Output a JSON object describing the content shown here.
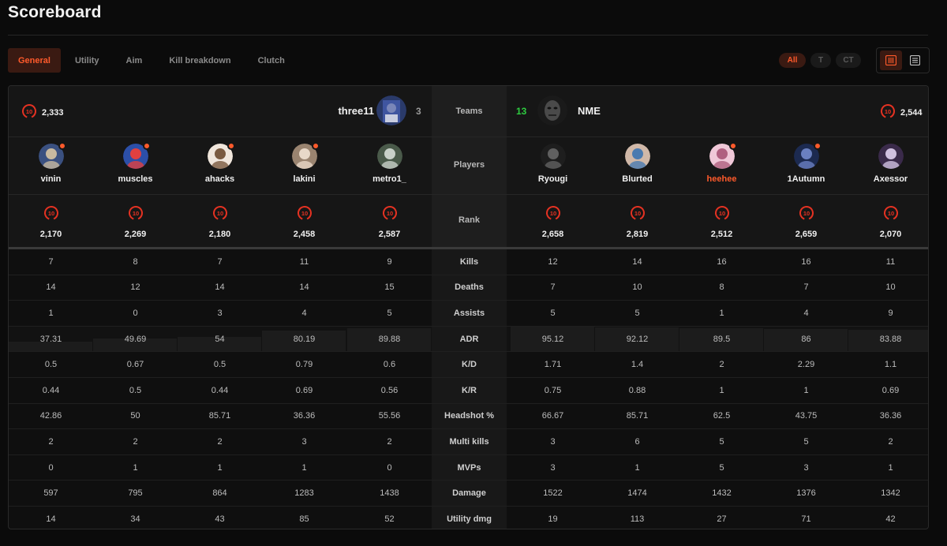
{
  "page": {
    "title": "Scoreboard"
  },
  "tabs": [
    "General",
    "Utility",
    "Aim",
    "Kill breakdown",
    "Clutch"
  ],
  "active_tab": "General",
  "side_filter": [
    "All",
    "T",
    "CT"
  ],
  "active_side": "All",
  "colors": {
    "accent": "#ff5a2b",
    "win": "#2ecc40",
    "badge": "#e53222"
  },
  "rank_badge_label": "10",
  "teams": {
    "left": {
      "name": "three11",
      "score": "3",
      "elo": "2,333"
    },
    "right": {
      "name": "NME",
      "score": "13",
      "elo": "2,544"
    }
  },
  "labels": {
    "teams": "Teams",
    "players": "Players",
    "rank": "Rank"
  },
  "players": {
    "left": [
      {
        "name": "vinin",
        "elo": "2,170",
        "flag": true
      },
      {
        "name": "muscles",
        "elo": "2,269",
        "flag": true
      },
      {
        "name": "ahacks",
        "elo": "2,180",
        "flag": true
      },
      {
        "name": "lakini",
        "elo": "2,458",
        "flag": true
      },
      {
        "name": "metro1_",
        "elo": "2,587",
        "flag": false
      }
    ],
    "right": [
      {
        "name": "Ryougi",
        "elo": "2,658",
        "flag": false
      },
      {
        "name": "Blurted",
        "elo": "2,819",
        "flag": false
      },
      {
        "name": "heehee",
        "elo": "2,512",
        "flag": true,
        "highlight": true
      },
      {
        "name": "1Autumn",
        "elo": "2,659",
        "flag": true
      },
      {
        "name": "Axessor",
        "elo": "2,070",
        "flag": false
      }
    ]
  },
  "stats": [
    {
      "label": "Kills",
      "left": [
        "7",
        "8",
        "7",
        "11",
        "9"
      ],
      "right": [
        "12",
        "14",
        "16",
        "16",
        "11"
      ]
    },
    {
      "label": "Deaths",
      "left": [
        "14",
        "12",
        "14",
        "14",
        "15"
      ],
      "right": [
        "7",
        "10",
        "8",
        "7",
        "10"
      ]
    },
    {
      "label": "Assists",
      "left": [
        "1",
        "0",
        "3",
        "4",
        "5"
      ],
      "right": [
        "5",
        "5",
        "1",
        "4",
        "9"
      ]
    },
    {
      "label": "ADR",
      "left": [
        "37.31",
        "49.69",
        "54",
        "80.19",
        "89.88"
      ],
      "right": [
        "95.12",
        "92.12",
        "89.5",
        "86",
        "83.88"
      ],
      "bar": true
    },
    {
      "label": "K/D",
      "left": [
        "0.5",
        "0.67",
        "0.5",
        "0.79",
        "0.6"
      ],
      "right": [
        "1.71",
        "1.4",
        "2",
        "2.29",
        "1.1"
      ]
    },
    {
      "label": "K/R",
      "left": [
        "0.44",
        "0.5",
        "0.44",
        "0.69",
        "0.56"
      ],
      "right": [
        "0.75",
        "0.88",
        "1",
        "1",
        "0.69"
      ]
    },
    {
      "label": "Headshot %",
      "left": [
        "42.86",
        "50",
        "85.71",
        "36.36",
        "55.56"
      ],
      "right": [
        "66.67",
        "85.71",
        "62.5",
        "43.75",
        "36.36"
      ]
    },
    {
      "label": "Multi kills",
      "left": [
        "2",
        "2",
        "2",
        "3",
        "2"
      ],
      "right": [
        "3",
        "6",
        "5",
        "5",
        "2"
      ]
    },
    {
      "label": "MVPs",
      "left": [
        "0",
        "1",
        "1",
        "1",
        "0"
      ],
      "right": [
        "3",
        "1",
        "5",
        "3",
        "1"
      ]
    },
    {
      "label": "Damage",
      "left": [
        "597",
        "795",
        "864",
        "1283",
        "1438"
      ],
      "right": [
        "1522",
        "1474",
        "1432",
        "1376",
        "1342"
      ]
    },
    {
      "label": "Utility dmg",
      "left": [
        "14",
        "34",
        "43",
        "85",
        "52"
      ],
      "right": [
        "19",
        "113",
        "27",
        "71",
        "42"
      ]
    }
  ]
}
